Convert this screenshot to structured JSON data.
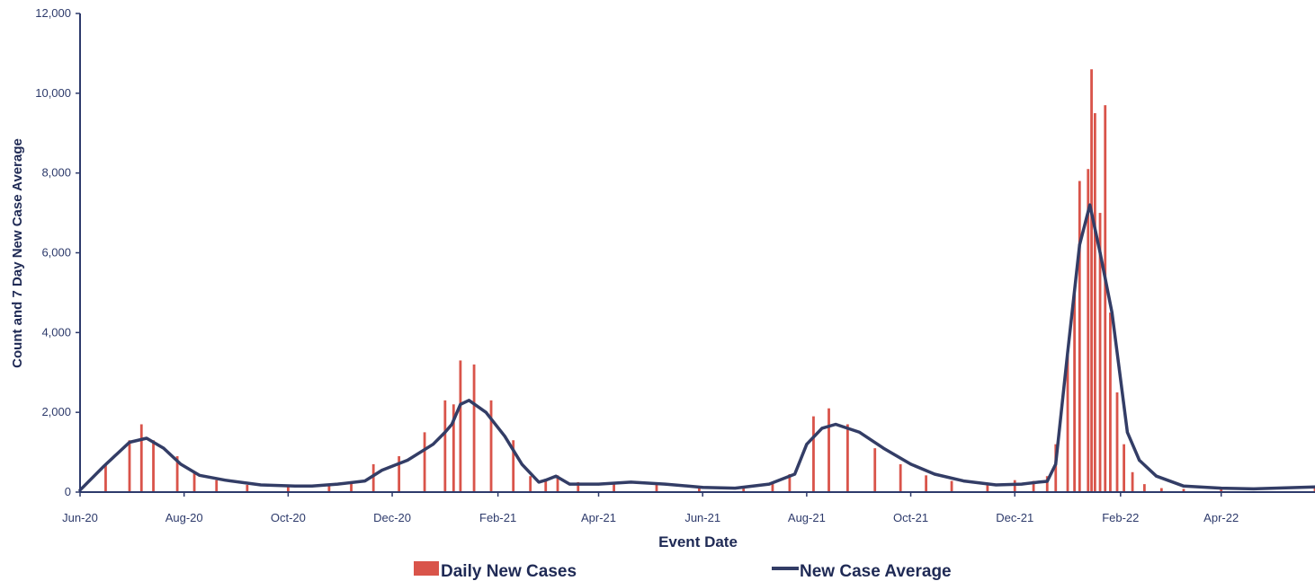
{
  "chart_data": {
    "type": "bar+line",
    "title": "",
    "xlabel": "Event Date",
    "ylabel": "Count and 7 Day New Case Average",
    "ylim": [
      0,
      12000
    ],
    "yticks": [
      "0",
      "2,000",
      "4,000",
      "6,000",
      "8,000",
      "10,000",
      "12,000"
    ],
    "xticks": [
      "Jun-20",
      "Aug-20",
      "Oct-20",
      "Dec-20",
      "Feb-21",
      "Apr-21",
      "Jun-21",
      "Aug-21",
      "Oct-21",
      "Dec-21",
      "Feb-22",
      "Apr-22"
    ],
    "x_range": [
      "2020-06-01",
      "2022-05-26"
    ],
    "grid": false,
    "legend_position": "bottom",
    "colors": {
      "bars": "#d9544a",
      "line": "#333d66",
      "axis": "#2d3a6b"
    },
    "series": [
      {
        "name": "Daily New Cases",
        "kind": "bar",
        "x": [
          "2020-06-01",
          "2020-06-16",
          "2020-06-30",
          "2020-07-07",
          "2020-07-14",
          "2020-07-28",
          "2020-08-07",
          "2020-08-20",
          "2020-09-07",
          "2020-10-01",
          "2020-10-25",
          "2020-11-07",
          "2020-11-20",
          "2020-12-05",
          "2020-12-20",
          "2021-01-01",
          "2021-01-06",
          "2021-01-10",
          "2021-01-18",
          "2021-01-28",
          "2021-02-10",
          "2021-02-20",
          "2021-03-01",
          "2021-03-08",
          "2021-03-20",
          "2021-04-10",
          "2021-05-05",
          "2021-05-30",
          "2021-06-25",
          "2021-07-12",
          "2021-07-22",
          "2021-08-05",
          "2021-08-14",
          "2021-08-25",
          "2021-09-10",
          "2021-09-25",
          "2021-10-10",
          "2021-10-25",
          "2021-11-15",
          "2021-12-01",
          "2021-12-12",
          "2021-12-20",
          "2021-12-25",
          "2022-01-01",
          "2022-01-05",
          "2022-01-08",
          "2022-01-13",
          "2022-01-15",
          "2022-01-17",
          "2022-01-20",
          "2022-01-23",
          "2022-01-26",
          "2022-01-30",
          "2022-02-03",
          "2022-02-08",
          "2022-02-15",
          "2022-02-25",
          "2022-03-10",
          "2022-04-01",
          "2022-05-26"
        ],
        "values": [
          20,
          700,
          1300,
          1700,
          1300,
          900,
          500,
          300,
          180,
          150,
          200,
          250,
          700,
          900,
          1500,
          2300,
          2200,
          3300,
          3200,
          2300,
          1300,
          400,
          300,
          420,
          250,
          250,
          230,
          150,
          100,
          230,
          450,
          1900,
          2100,
          1700,
          1100,
          700,
          420,
          280,
          200,
          300,
          280,
          400,
          1200,
          3500,
          5000,
          7800,
          8100,
          10600,
          9500,
          7000,
          9700,
          4500,
          2500,
          1200,
          500,
          200,
          100,
          80,
          100,
          150
        ]
      },
      {
        "name": "New Case Average",
        "kind": "line",
        "x": [
          "2020-06-01",
          "2020-06-15",
          "2020-06-30",
          "2020-07-10",
          "2020-07-20",
          "2020-07-30",
          "2020-08-10",
          "2020-08-25",
          "2020-09-15",
          "2020-10-05",
          "2020-10-15",
          "2020-10-30",
          "2020-11-15",
          "2020-11-25",
          "2020-12-10",
          "2020-12-25",
          "2021-01-01",
          "2021-01-05",
          "2021-01-10",
          "2021-01-15",
          "2021-01-25",
          "2021-02-05",
          "2021-02-15",
          "2021-02-25",
          "2021-03-01",
          "2021-03-07",
          "2021-03-15",
          "2021-04-01",
          "2021-04-20",
          "2021-05-10",
          "2021-06-01",
          "2021-06-20",
          "2021-07-10",
          "2021-07-25",
          "2021-08-01",
          "2021-08-10",
          "2021-08-18",
          "2021-09-01",
          "2021-09-15",
          "2021-10-01",
          "2021-10-15",
          "2021-11-01",
          "2021-11-20",
          "2021-12-05",
          "2021-12-15",
          "2021-12-20",
          "2021-12-25",
          "2022-01-01",
          "2022-01-08",
          "2022-01-14",
          "2022-01-20",
          "2022-01-27",
          "2022-02-05",
          "2022-02-12",
          "2022-02-22",
          "2022-03-10",
          "2022-04-01",
          "2022-04-20",
          "2022-05-26"
        ],
        "values": [
          50,
          650,
          1250,
          1350,
          1100,
          700,
          420,
          300,
          180,
          150,
          150,
          200,
          280,
          550,
          800,
          1200,
          1500,
          1700,
          2200,
          2300,
          2000,
          1400,
          700,
          250,
          300,
          400,
          200,
          200,
          250,
          200,
          120,
          100,
          200,
          450,
          1200,
          1600,
          1700,
          1500,
          1100,
          700,
          450,
          280,
          180,
          200,
          250,
          270,
          700,
          3500,
          6200,
          7200,
          6000,
          4500,
          1500,
          800,
          400,
          150,
          100,
          80,
          130
        ]
      }
    ]
  },
  "legend": {
    "bars_label": "Daily New Cases",
    "line_label": "New Case Average"
  }
}
